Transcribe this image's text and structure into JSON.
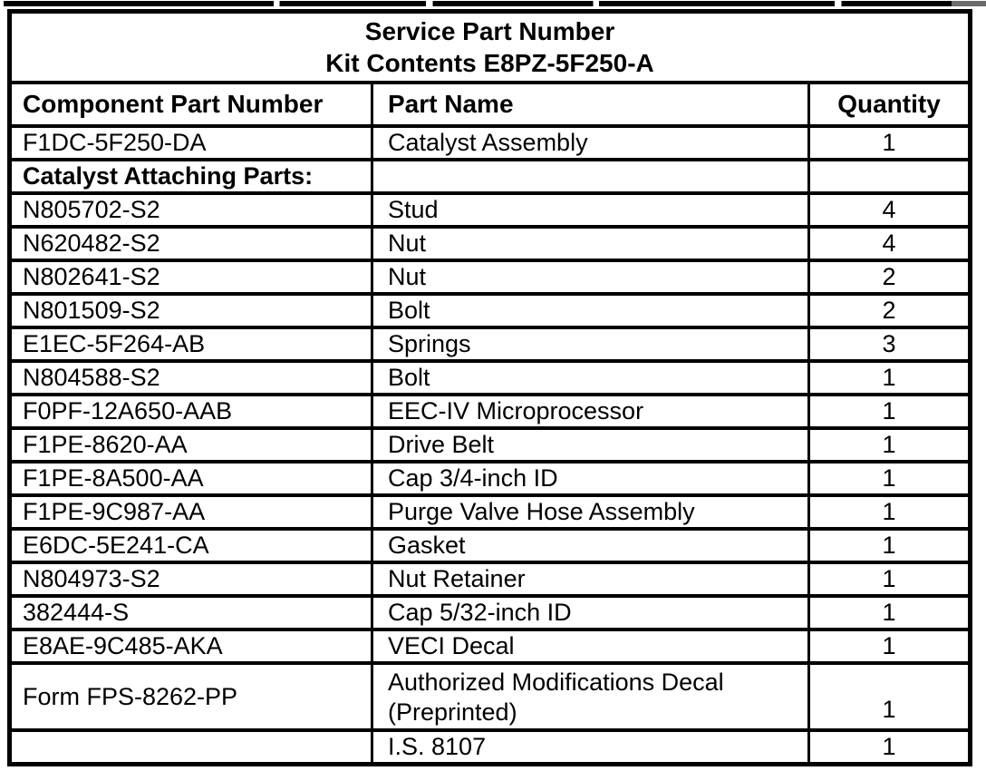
{
  "table": {
    "title_line1": "Service Part Number",
    "title_line2": "Kit Contents E8PZ-5F250-A",
    "columns": [
      "Component Part Number",
      "Part Name",
      "Quantity"
    ],
    "rows": [
      {
        "part_number": "F1DC-5F250-DA",
        "part_name": "Catalyst Assembly",
        "quantity": "1"
      },
      {
        "part_number": "Catalyst Attaching Parts:",
        "part_name": "",
        "quantity": "",
        "section": true
      },
      {
        "part_number": "N805702-S2",
        "part_name": "Stud",
        "quantity": "4"
      },
      {
        "part_number": "N620482-S2",
        "part_name": "Nut",
        "quantity": "4"
      },
      {
        "part_number": "N802641-S2",
        "part_name": "Nut",
        "quantity": "2"
      },
      {
        "part_number": "N801509-S2",
        "part_name": "Bolt",
        "quantity": "2"
      },
      {
        "part_number": "E1EC-5F264-AB",
        "part_name": "Springs",
        "quantity": "3"
      },
      {
        "part_number": "N804588-S2",
        "part_name": "Bolt",
        "quantity": "1"
      },
      {
        "part_number": "F0PF-12A650-AAB",
        "part_name": "EEC-IV Microprocessor",
        "quantity": "1"
      },
      {
        "part_number": "F1PE-8620-AA",
        "part_name": "Drive Belt",
        "quantity": "1"
      },
      {
        "part_number": "F1PE-8A500-AA",
        "part_name": "Cap 3/4-inch ID",
        "quantity": "1"
      },
      {
        "part_number": "F1PE-9C987-AA",
        "part_name": "Purge Valve Hose Assembly",
        "quantity": "1"
      },
      {
        "part_number": "E6DC-5E241-CA",
        "part_name": "Gasket",
        "quantity": "1"
      },
      {
        "part_number": "N804973-S2",
        "part_name": "Nut Retainer",
        "quantity": "1"
      },
      {
        "part_number": "382444-S",
        "part_name": "Cap 5/32-inch ID",
        "quantity": "1"
      },
      {
        "part_number": "E8AE-9C485-AKA",
        "part_name": "VECI Decal",
        "quantity": "1"
      },
      {
        "part_number": "Form FPS-8262-PP",
        "part_name": [
          "Authorized Modifications Decal",
          "(Preprinted)"
        ],
        "quantity": "1",
        "tall": true
      },
      {
        "part_number": "",
        "part_name": "I.S. 8107",
        "quantity": "1"
      }
    ]
  }
}
